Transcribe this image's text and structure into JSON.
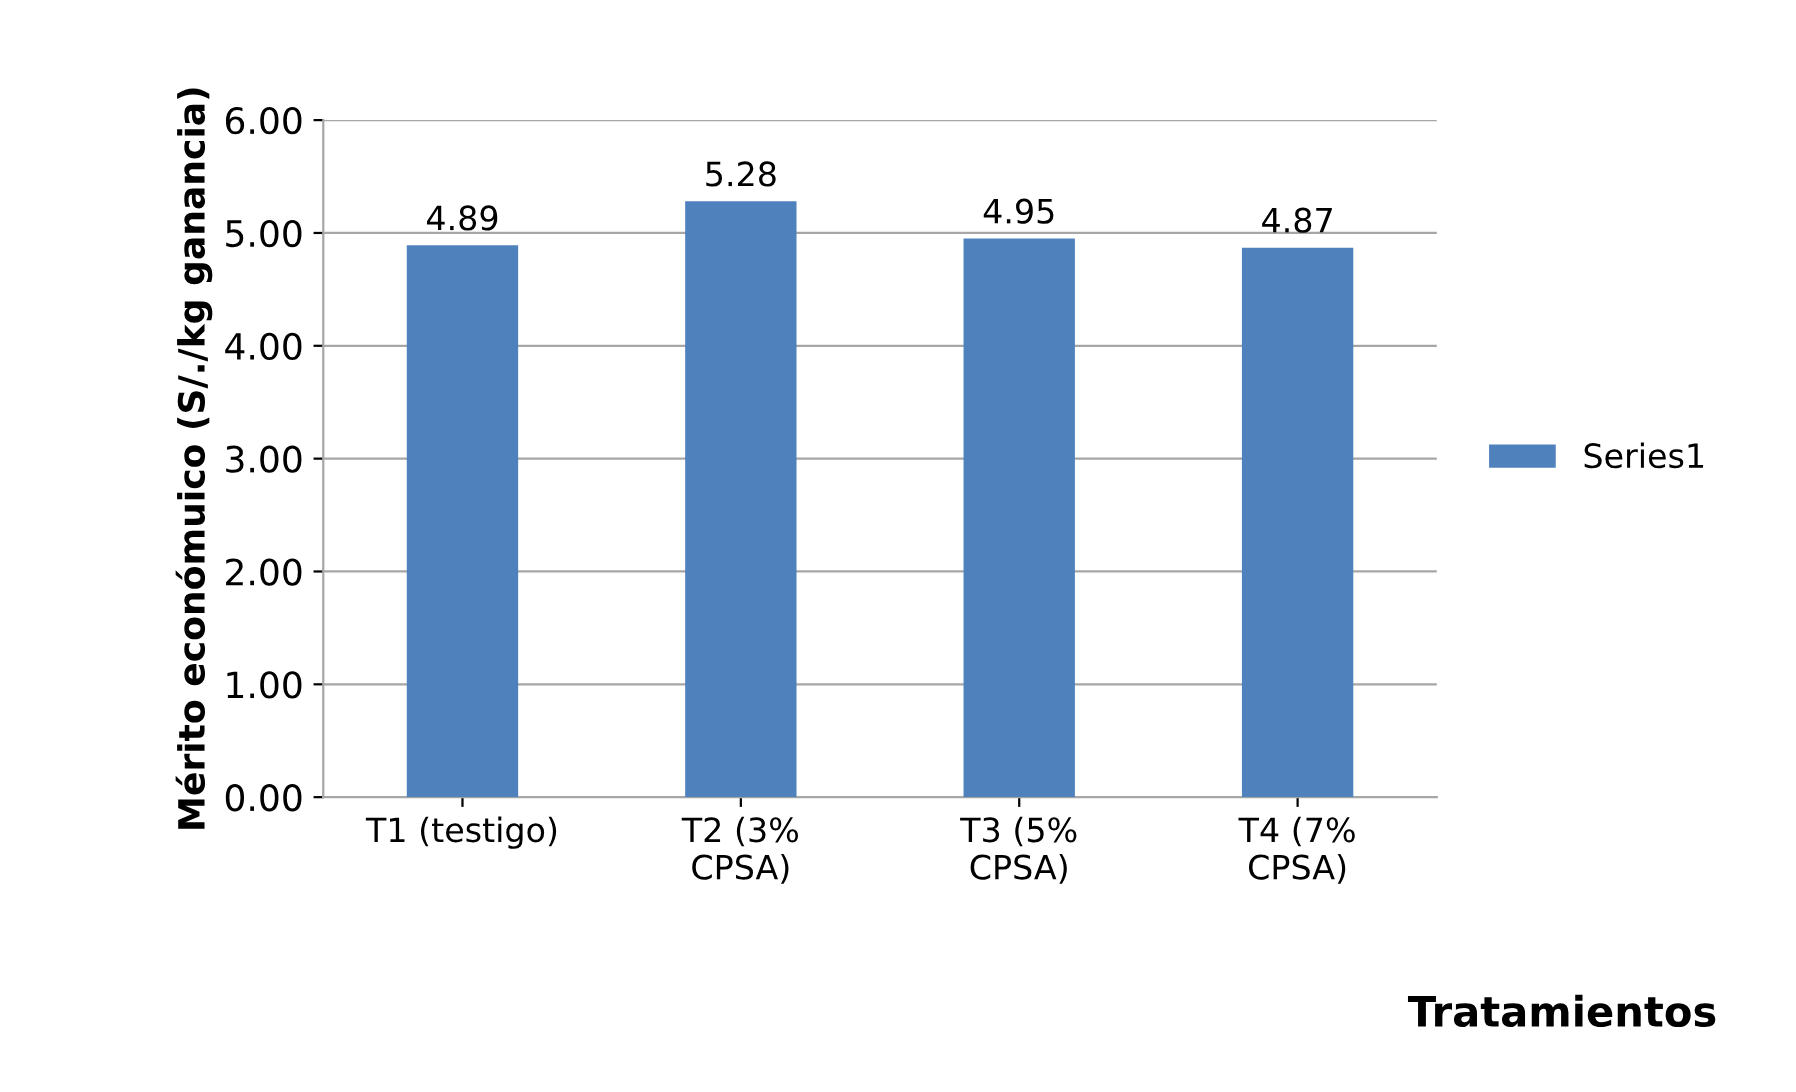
{
  "chart_data": {
    "type": "bar",
    "xlabel": "Tratamientos",
    "ylabel": "Mérito económuico (S/./kg ganancia)",
    "categories": [
      "T1 (testigo)",
      "T2 (3%\nCPSA)",
      "T3 (5%\nCPSA)",
      "T4 (7%\nCPSA)"
    ],
    "series": [
      {
        "name": "Series1",
        "color": "#4f81bd",
        "values": [
          4.89,
          5.28,
          4.95,
          4.87
        ]
      }
    ],
    "ylim": [
      0,
      6
    ],
    "yticks": [
      {
        "value": 0,
        "label": "0.00"
      },
      {
        "value": 1,
        "label": "1.00"
      },
      {
        "value": 2,
        "label": "2.00"
      },
      {
        "value": 3,
        "label": "3.00"
      },
      {
        "value": 4,
        "label": "4.00"
      },
      {
        "value": 5,
        "label": "5.00"
      },
      {
        "value": 6,
        "label": "6.00"
      }
    ],
    "grid": "y",
    "legend": "right",
    "data_labels": true
  }
}
